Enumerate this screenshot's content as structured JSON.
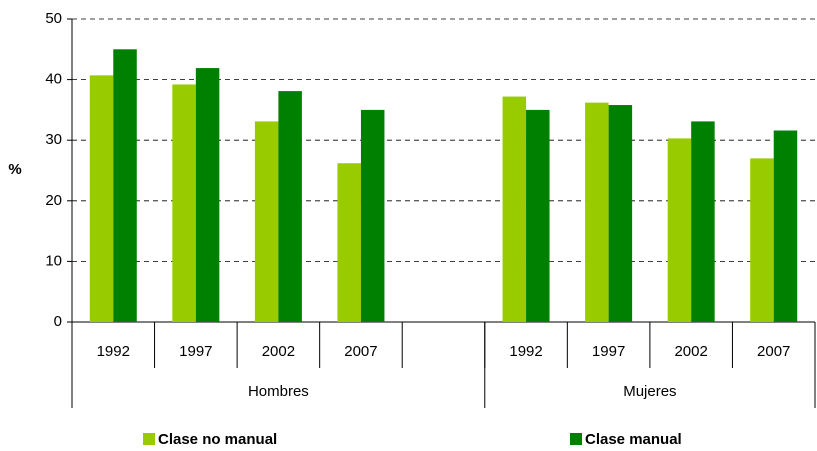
{
  "chart_data": {
    "type": "bar",
    "y_label": "%",
    "categories": [
      "1992",
      "1997",
      "2002",
      "2007",
      null,
      "1992",
      "1997",
      "2002",
      "2007"
    ],
    "groups": [
      "Hombres",
      "Mujeres"
    ],
    "series": [
      {
        "name": "Clase no manual",
        "color": "#99cc00",
        "values": [
          40.7,
          39.2,
          33.1,
          26.2,
          null,
          37.2,
          36.2,
          30.3,
          27.0
        ]
      },
      {
        "name": "Clase manual",
        "color": "#008000",
        "values": [
          45.0,
          41.9,
          38.1,
          35.0,
          null,
          35.0,
          35.8,
          33.1,
          31.6
        ]
      }
    ],
    "ylim": [
      0,
      50
    ],
    "yticks": [
      0,
      10,
      20,
      30,
      40,
      50
    ],
    "grid": true
  }
}
